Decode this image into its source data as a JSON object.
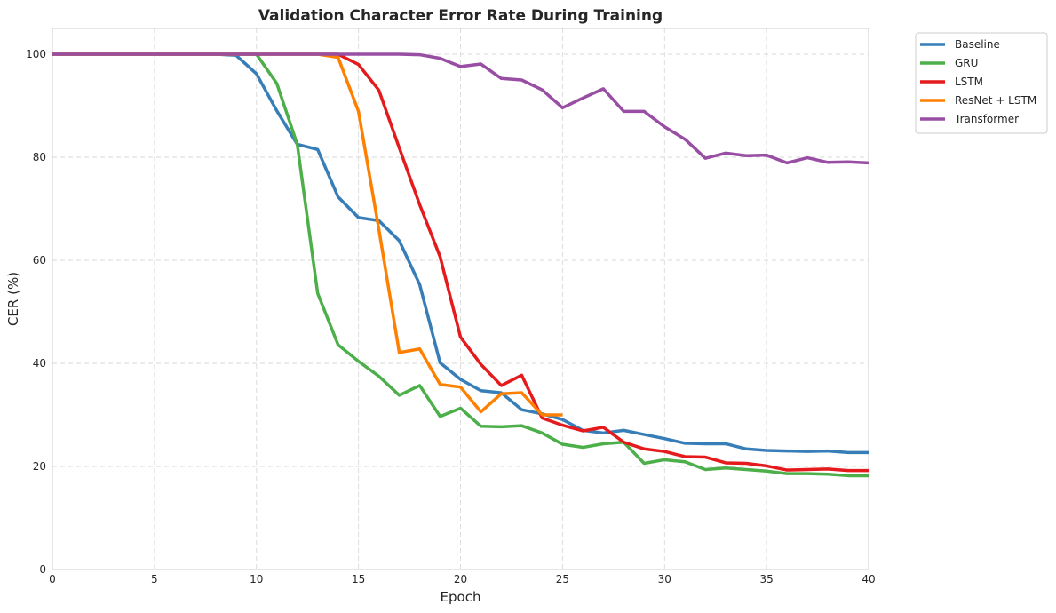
{
  "chart_data": {
    "type": "line",
    "title": "Validation Character Error Rate During Training",
    "xlabel": "Epoch",
    "ylabel": "CER (%)",
    "xlim": [
      0,
      40
    ],
    "ylim": [
      0,
      105
    ],
    "xticks": [
      0,
      5,
      10,
      15,
      20,
      25,
      30,
      35,
      40
    ],
    "yticks": [
      0,
      20,
      40,
      60,
      80,
      100
    ],
    "grid": true,
    "legend_position": "outside-top-right",
    "series": [
      {
        "name": "Baseline",
        "color": "#377eb8",
        "x": [
          0,
          1,
          2,
          3,
          4,
          5,
          6,
          7,
          8,
          9,
          10,
          11,
          12,
          13,
          14,
          15,
          16,
          17,
          18,
          19,
          20,
          21,
          22,
          23,
          24,
          25,
          26,
          27,
          28,
          29,
          30,
          31,
          32,
          33,
          34,
          35,
          36,
          37,
          38,
          39,
          40
        ],
        "y": [
          100,
          100,
          100,
          100,
          100,
          100,
          100,
          100,
          100,
          99.8,
          96.2,
          89,
          82.5,
          81.5,
          72.3,
          68.3,
          67.7,
          63.8,
          55.3,
          40.1,
          36.9,
          34.7,
          34.3,
          31,
          30.2,
          29.1,
          27,
          26.5,
          27,
          26.2,
          25.4,
          24.5,
          24.4,
          24.4,
          23.4,
          23.1,
          23,
          22.9,
          23,
          22.7,
          22.7
        ]
      },
      {
        "name": "GRU",
        "color": "#4daf4a",
        "x": [
          0,
          1,
          2,
          3,
          4,
          5,
          6,
          7,
          8,
          9,
          10,
          11,
          12,
          13,
          14,
          15,
          16,
          17,
          18,
          19,
          20,
          21,
          22,
          23,
          24,
          25,
          26,
          27,
          28,
          29,
          30,
          31,
          32,
          33,
          34,
          35,
          36,
          37,
          38,
          39,
          40
        ],
        "y": [
          100,
          100,
          100,
          100,
          100,
          100,
          100,
          100,
          100,
          100,
          100,
          94.3,
          82.5,
          53.6,
          43.6,
          40.4,
          37.5,
          33.8,
          35.7,
          29.7,
          31.3,
          27.8,
          27.7,
          27.9,
          26.5,
          24.3,
          23.7,
          24.4,
          24.7,
          20.6,
          21.3,
          20.9,
          19.4,
          19.7,
          19.4,
          19.1,
          18.6,
          18.6,
          18.5,
          18.2,
          18.2
        ]
      },
      {
        "name": "LSTM",
        "color": "#e41a1c",
        "x": [
          0,
          1,
          2,
          3,
          4,
          5,
          6,
          7,
          8,
          9,
          10,
          11,
          12,
          13,
          14,
          15,
          16,
          17,
          18,
          19,
          20,
          21,
          22,
          23,
          24,
          25,
          26,
          27,
          28,
          29,
          30,
          31,
          32,
          33,
          34,
          35,
          36,
          37,
          38,
          39,
          40
        ],
        "y": [
          100,
          100,
          100,
          100,
          100,
          100,
          100,
          100,
          100,
          100,
          100,
          100,
          100,
          100,
          100,
          98,
          93,
          81.8,
          70.8,
          60.7,
          45.1,
          39.8,
          35.7,
          37.7,
          29.4,
          28,
          26.9,
          27.6,
          24.7,
          23.4,
          22.9,
          21.9,
          21.8,
          20.7,
          20.6,
          20.1,
          19.3,
          19.4,
          19.5,
          19.2,
          19.2
        ]
      },
      {
        "name": "ResNet + LSTM",
        "color": "#ff7f00",
        "x": [
          0,
          1,
          2,
          3,
          4,
          5,
          6,
          7,
          8,
          9,
          10,
          11,
          12,
          13,
          14,
          15,
          16,
          17,
          18,
          19,
          20,
          21,
          22,
          23,
          24,
          25
        ],
        "y": [
          100,
          100,
          100,
          100,
          100,
          100,
          100,
          100,
          100,
          100,
          100,
          100,
          100,
          100,
          99.4,
          88.9,
          66,
          42.1,
          42.8,
          35.9,
          35.4,
          30.6,
          34.1,
          34.3,
          30,
          30
        ]
      },
      {
        "name": "Transformer",
        "color": "#984ea3",
        "x": [
          0,
          1,
          2,
          3,
          4,
          5,
          6,
          7,
          8,
          9,
          10,
          11,
          12,
          13,
          14,
          15,
          16,
          17,
          18,
          19,
          20,
          21,
          22,
          23,
          24,
          25,
          26,
          27,
          28,
          29,
          30,
          31,
          32,
          33,
          34,
          35,
          36,
          37,
          38,
          39,
          40
        ],
        "y": [
          100,
          100,
          100,
          100,
          100,
          100,
          100,
          100,
          100,
          100,
          100,
          100,
          100,
          100,
          100,
          100,
          100,
          100,
          99.9,
          99.2,
          97.6,
          98.1,
          95.3,
          95,
          93.1,
          89.6,
          91.5,
          93.3,
          88.9,
          88.9,
          85.9,
          83.5,
          79.8,
          80.8,
          80.3,
          80.4,
          78.9,
          79.9,
          79,
          79.1,
          78.9
        ]
      }
    ]
  }
}
